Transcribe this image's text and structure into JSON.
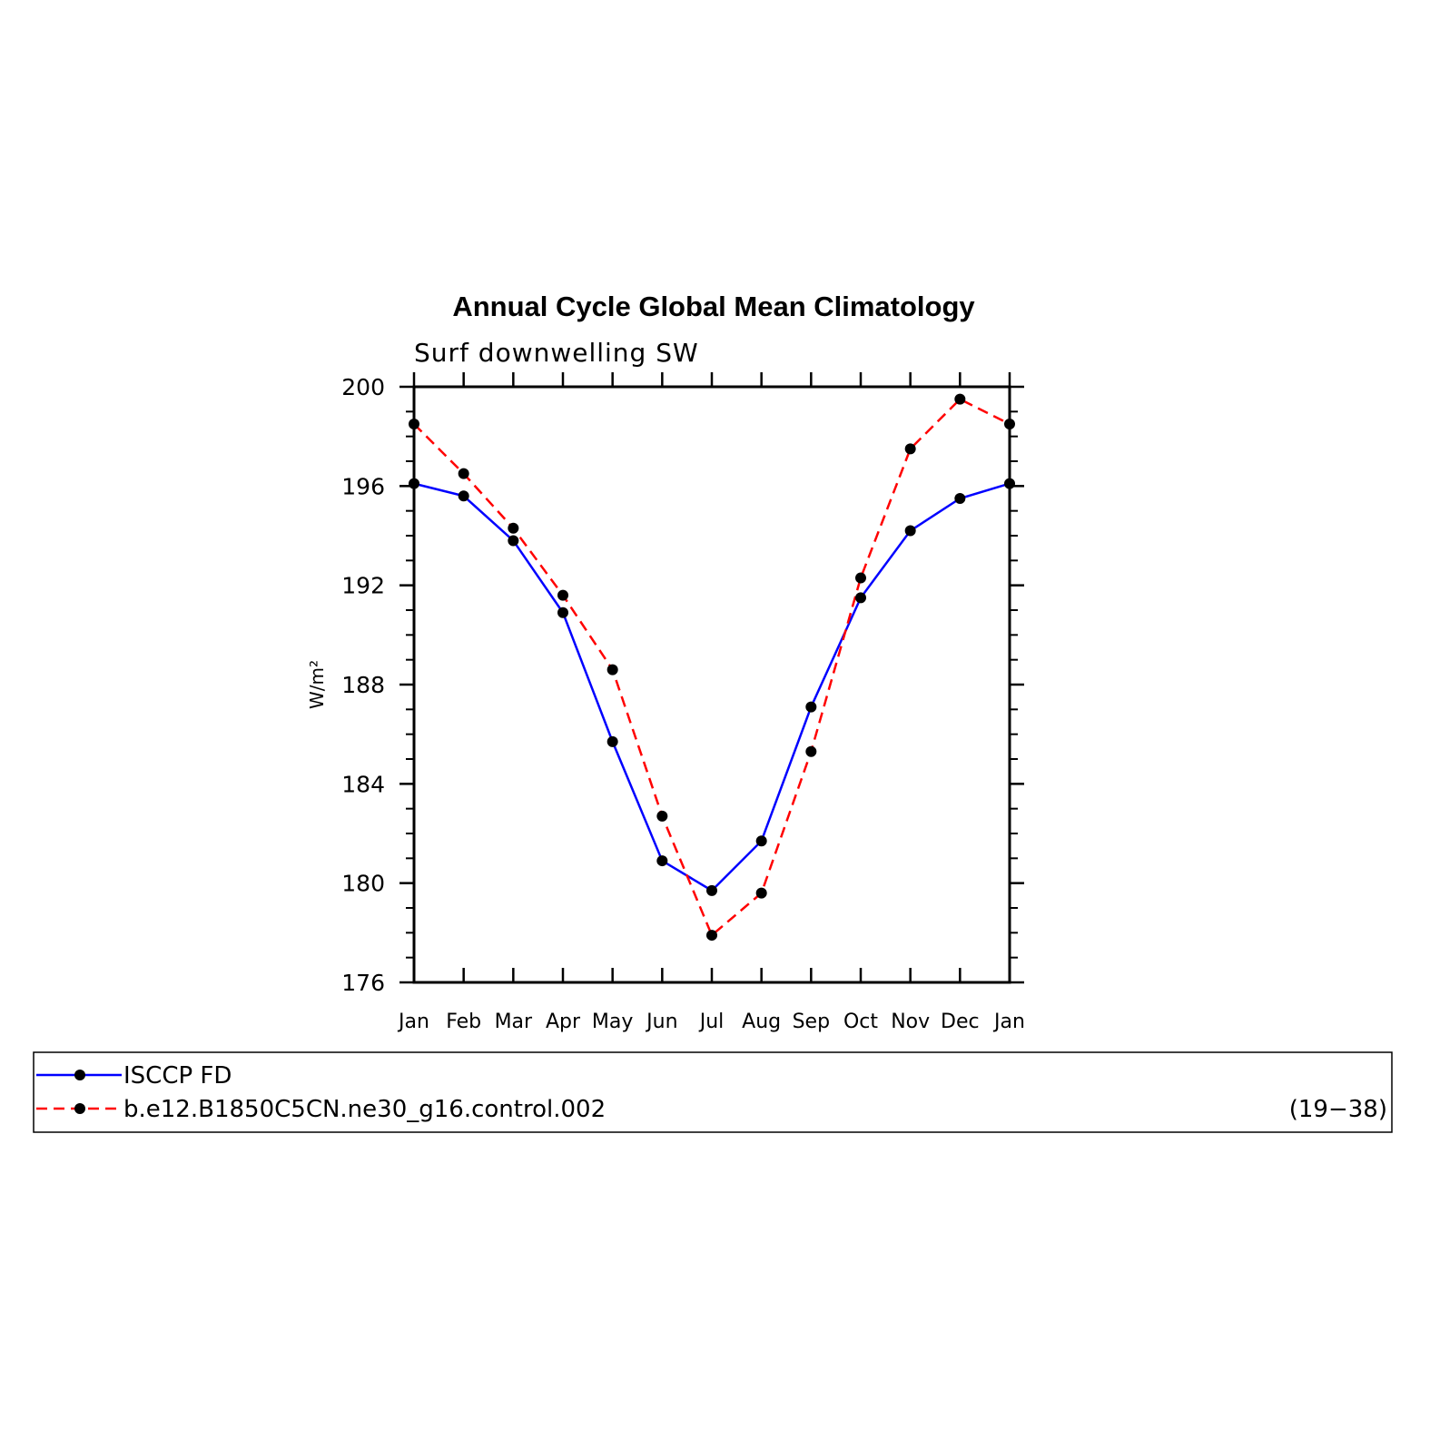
{
  "chart_data": {
    "type": "line",
    "title": "Annual Cycle Global Mean Climatology",
    "subtitle": "Surf downwelling SW",
    "ylabel": "W/m²",
    "xlabel": "",
    "categories": [
      "Jan",
      "Feb",
      "Mar",
      "Apr",
      "May",
      "Jun",
      "Jul",
      "Aug",
      "Sep",
      "Oct",
      "Nov",
      "Dec",
      "Jan"
    ],
    "ylim": [
      176,
      200
    ],
    "yticks": [
      176,
      180,
      184,
      188,
      192,
      196,
      200
    ],
    "ytick_labels": [
      "176",
      "180",
      "184",
      "188",
      "192",
      "196",
      "200"
    ],
    "grid": false,
    "legend_position": "bottom",
    "series": [
      {
        "name": "ISCCP FD",
        "color": "#0000ff",
        "dash": "solid",
        "values": [
          196.1,
          195.6,
          193.8,
          190.9,
          185.7,
          180.9,
          179.7,
          181.7,
          187.1,
          191.5,
          194.2,
          195.5,
          196.1
        ]
      },
      {
        "name": "b.e12.B1850C5CN.ne30_g16.control.002",
        "annotation": "(19−38)",
        "color": "#ff0000",
        "dash": "dashed",
        "values": [
          198.5,
          196.5,
          194.3,
          191.6,
          188.6,
          182.7,
          177.9,
          179.6,
          185.3,
          192.3,
          197.5,
          199.5,
          198.5
        ]
      }
    ]
  }
}
